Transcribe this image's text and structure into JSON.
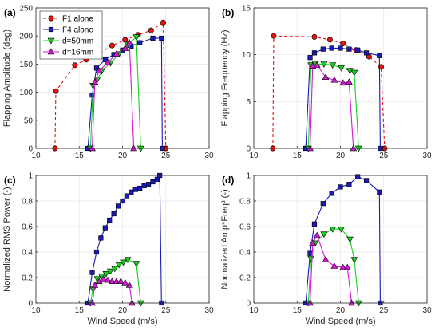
{
  "colors": {
    "F1 alone": "#e8120c",
    "F4 alone": "#1a1ab8",
    "d=50mm": "#17d11f",
    "d=16mm": "#d11ad1",
    "grid": "#e6e6e6",
    "axis": "#262626"
  },
  "chart_data": [
    {
      "type": "line",
      "panel": "(a)",
      "ylabel": "Flapping Amplitude (deg)",
      "xlabel": "",
      "xlim": [
        10,
        30
      ],
      "ylim": [
        0,
        250
      ],
      "xticks": [
        10,
        15,
        20,
        25,
        30
      ],
      "yticks": [
        0,
        50,
        100,
        150,
        200,
        250
      ],
      "grid": true,
      "legend": {
        "placement": "top-left",
        "entries": [
          "F1 alone",
          "F4 alone",
          "d=50mm",
          "d=16mm"
        ]
      },
      "series": [
        {
          "name": "F1 alone",
          "marker": "circle",
          "dash": "dashed",
          "x": [
            12.2,
            12.3,
            14.5,
            15.8,
            17.2,
            18.8,
            20.3,
            21.8,
            23.3,
            24.7,
            25.0
          ],
          "y": [
            0,
            102,
            148,
            158,
            168,
            183,
            193,
            202,
            210,
            224,
            0
          ]
        },
        {
          "name": "F4 alone",
          "marker": "square",
          "dash": "solid",
          "x": [
            16.0,
            16.5,
            17.0,
            18.0,
            19.0,
            20.0,
            21.0,
            22.0,
            23.5,
            24.5,
            24.6
          ],
          "y": [
            0,
            95,
            143,
            158,
            167,
            175,
            182,
            188,
            196,
            196,
            0
          ]
        },
        {
          "name": "d=50mm",
          "marker": "triangle-down",
          "dash": "solid",
          "x": [
            16.3,
            16.6,
            17.1,
            17.6,
            18.6,
            19.6,
            20.6,
            21.6,
            22.1
          ],
          "y": [
            0,
            112,
            123,
            138,
            152,
            168,
            185,
            198,
            0
          ]
        },
        {
          "name": "d=16mm",
          "marker": "triangle-up",
          "dash": "solid",
          "x": [
            16.5,
            16.8,
            17.3,
            18.3,
            19.3,
            20.3,
            20.8,
            21.3
          ],
          "y": [
            0,
            118,
            138,
            153,
            168,
            178,
            188,
            0
          ]
        }
      ]
    },
    {
      "type": "line",
      "panel": "(b)",
      "ylabel": "Flapping Frequency (Hz)",
      "xlabel": "",
      "xlim": [
        10,
        30
      ],
      "ylim": [
        0,
        15
      ],
      "xticks": [
        10,
        15,
        20,
        25,
        30
      ],
      "yticks": [
        0,
        5,
        10,
        15
      ],
      "grid": true,
      "series": [
        {
          "name": "F1 alone",
          "marker": "circle",
          "dash": "dashed",
          "x": [
            12.2,
            12.3,
            17.0,
            18.8,
            20.3,
            21.8,
            23.3,
            24.7,
            25.1
          ],
          "y": [
            0,
            12.0,
            11.9,
            11.6,
            11.2,
            10.5,
            9.8,
            8.7,
            0
          ]
        },
        {
          "name": "F4 alone",
          "marker": "square",
          "dash": "solid",
          "x": [
            16.0,
            16.5,
            17.0,
            18.0,
            19.0,
            20.0,
            21.0,
            22.0,
            23.0,
            24.5,
            24.6
          ],
          "y": [
            0,
            9.7,
            10.2,
            10.6,
            10.7,
            10.7,
            10.6,
            10.5,
            10.2,
            9.9,
            0
          ]
        },
        {
          "name": "d=50mm",
          "marker": "triangle-down",
          "dash": "solid",
          "x": [
            16.3,
            16.6,
            17.1,
            18.1,
            19.1,
            20.1,
            21.1,
            21.6,
            22.1
          ],
          "y": [
            0,
            8.9,
            9.0,
            9.0,
            8.9,
            8.6,
            8.3,
            8.1,
            0
          ]
        },
        {
          "name": "d=16mm",
          "marker": "triangle-up",
          "dash": "solid",
          "x": [
            16.5,
            16.8,
            17.3,
            18.3,
            19.3,
            20.3,
            21.0,
            21.5
          ],
          "y": [
            0,
            8.8,
            8.9,
            7.6,
            7.3,
            7.0,
            7.1,
            0
          ]
        }
      ]
    },
    {
      "type": "line",
      "panel": "(c)",
      "ylabel": "Normalized RMS Power (-)",
      "xlabel": "Wind Speed (m/s)",
      "xlim": [
        10,
        30
      ],
      "ylim": [
        0,
        1
      ],
      "xticks": [
        10,
        15,
        20,
        25,
        30
      ],
      "yticks": [
        0,
        0.2,
        0.4,
        0.6,
        0.8,
        1
      ],
      "grid": true,
      "series": [
        {
          "name": "F4 alone",
          "marker": "square",
          "dash": "solid",
          "x": [
            16.0,
            16.5,
            17.0,
            17.5,
            18.0,
            18.5,
            19.0,
            19.5,
            20.0,
            20.5,
            21.0,
            21.5,
            22.0,
            22.5,
            23.0,
            23.5,
            24.0,
            24.3,
            24.5
          ],
          "y": [
            0,
            0.24,
            0.4,
            0.51,
            0.59,
            0.65,
            0.7,
            0.76,
            0.8,
            0.84,
            0.87,
            0.89,
            0.9,
            0.92,
            0.93,
            0.95,
            0.97,
            1.0,
            0
          ]
        },
        {
          "name": "d=50mm",
          "marker": "triangle-down",
          "dash": "solid",
          "x": [
            16.3,
            16.6,
            17.1,
            17.6,
            18.1,
            18.6,
            19.1,
            19.6,
            20.1,
            20.6,
            21.6,
            22.1
          ],
          "y": [
            0,
            0.11,
            0.19,
            0.21,
            0.23,
            0.25,
            0.27,
            0.3,
            0.32,
            0.34,
            0.31,
            0
          ]
        },
        {
          "name": "d=16mm",
          "marker": "triangle-up",
          "dash": "solid",
          "x": [
            16.5,
            16.8,
            17.3,
            17.8,
            18.3,
            18.8,
            19.3,
            19.8,
            20.3,
            20.8,
            21.1
          ],
          "y": [
            0,
            0.14,
            0.17,
            0.19,
            0.18,
            0.17,
            0.17,
            0.17,
            0.16,
            0.14,
            0
          ]
        }
      ]
    },
    {
      "type": "line",
      "panel": "(d)",
      "ylabel": "Normalized Amp*Freq³ (-)",
      "xlabel": "Wind Speed (m/s)",
      "xlim": [
        10,
        30
      ],
      "ylim": [
        0,
        1
      ],
      "xticks": [
        10,
        15,
        20,
        25,
        30
      ],
      "yticks": [
        0,
        0.2,
        0.4,
        0.6,
        0.8,
        1
      ],
      "grid": true,
      "series": [
        {
          "name": "F4 alone",
          "marker": "square",
          "dash": "solid",
          "x": [
            16.0,
            16.5,
            17.0,
            18.0,
            19.0,
            20.0,
            21.0,
            22.0,
            23.0,
            24.5,
            24.6
          ],
          "y": [
            0,
            0.39,
            0.62,
            0.78,
            0.86,
            0.91,
            0.93,
            0.99,
            0.96,
            0.87,
            0
          ]
        },
        {
          "name": "d=50mm",
          "marker": "triangle-down",
          "dash": "solid",
          "x": [
            16.3,
            16.6,
            17.1,
            18.1,
            19.1,
            20.1,
            21.1,
            21.6,
            22.1
          ],
          "y": [
            0,
            0.35,
            0.47,
            0.54,
            0.58,
            0.58,
            0.5,
            0.34,
            0
          ]
        },
        {
          "name": "d=16mm",
          "marker": "triangle-up",
          "dash": "solid",
          "x": [
            16.5,
            16.8,
            17.3,
            18.3,
            19.3,
            20.3,
            20.8,
            21.3
          ],
          "y": [
            0,
            0.47,
            0.53,
            0.34,
            0.29,
            0.28,
            0.28,
            0
          ]
        }
      ]
    }
  ]
}
